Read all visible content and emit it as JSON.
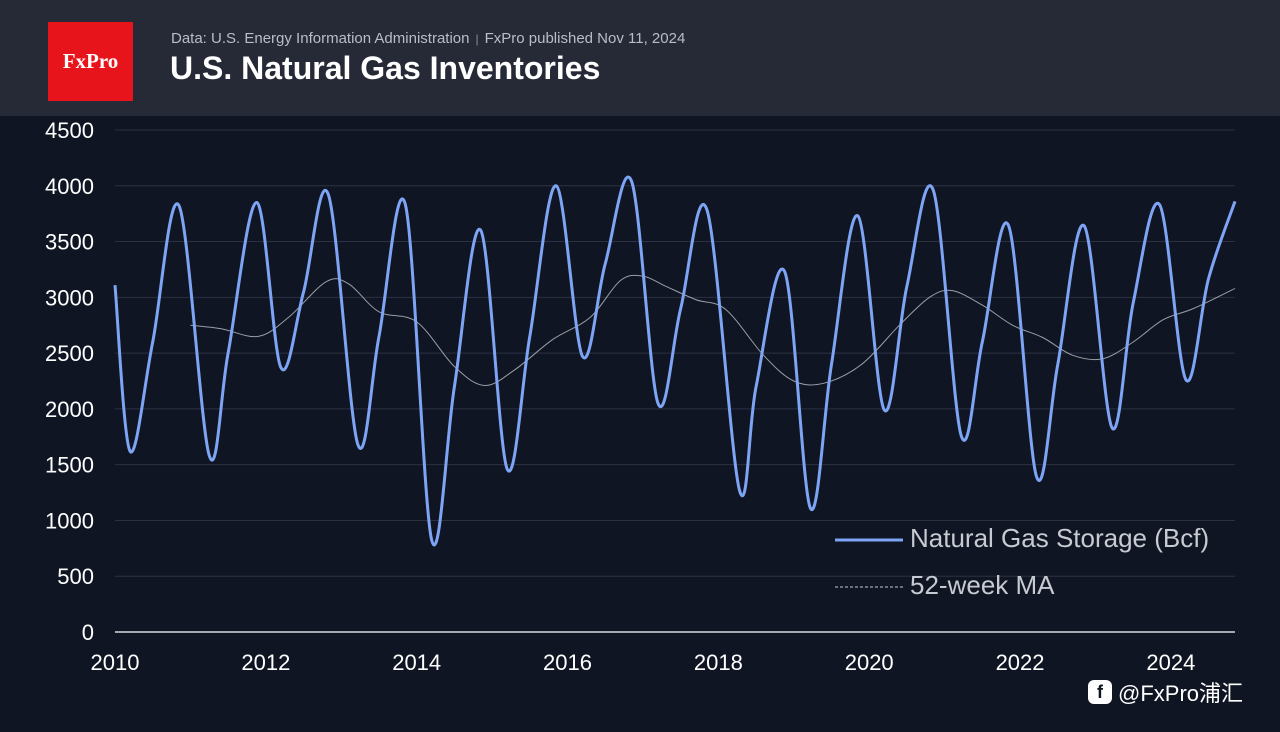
{
  "header": {
    "logo_text": "FxPro",
    "source": "Data: U.S. Energy Information Administration",
    "separator": "|",
    "published": "FxPro published Nov 11, 2024",
    "title": "U.S. Natural Gas Inventories"
  },
  "watermark": {
    "icon": "fxpro-social-icon",
    "text": "@FxPro浦汇"
  },
  "colors": {
    "background": "#0f1523",
    "header": "#262a36",
    "storage_line": "#7ea5f5",
    "ma_line": "#c9ccd2",
    "logo": "#e8141b"
  },
  "chart_data": {
    "type": "line",
    "title": "U.S. Natural Gas Inventories",
    "xlabel": "",
    "ylabel": "",
    "xlim": [
      2010,
      2024.85
    ],
    "ylim": [
      0,
      4500
    ],
    "x_ticks": [
      2010,
      2012,
      2014,
      2016,
      2018,
      2020,
      2022,
      2024
    ],
    "y_ticks": [
      0,
      500,
      1000,
      1500,
      2000,
      2500,
      3000,
      3500,
      4000,
      4500
    ],
    "grid": "horizontal",
    "legend_position": "bottom-right",
    "series": [
      {
        "name": "Natural Gas Storage (Bcf)",
        "style": "solid",
        "points": [
          [
            2010,
            3110
          ],
          [
            2010.2,
            1620
          ],
          [
            2010.5,
            2600
          ],
          [
            2010.85,
            3820
          ],
          [
            2011.25,
            1580
          ],
          [
            2011.5,
            2500
          ],
          [
            2011.88,
            3850
          ],
          [
            2012.2,
            2370
          ],
          [
            2012.5,
            3050
          ],
          [
            2012.83,
            3920
          ],
          [
            2013.22,
            1680
          ],
          [
            2013.5,
            2650
          ],
          [
            2013.85,
            3830
          ],
          [
            2014.2,
            820
          ],
          [
            2014.5,
            2200
          ],
          [
            2014.85,
            3600
          ],
          [
            2015.2,
            1460
          ],
          [
            2015.5,
            2650
          ],
          [
            2015.85,
            4000
          ],
          [
            2016.2,
            2470
          ],
          [
            2016.5,
            3300
          ],
          [
            2016.85,
            4040
          ],
          [
            2017.2,
            2050
          ],
          [
            2017.5,
            2900
          ],
          [
            2017.85,
            3780
          ],
          [
            2018.28,
            1270
          ],
          [
            2018.5,
            2200
          ],
          [
            2018.88,
            3230
          ],
          [
            2019.22,
            1110
          ],
          [
            2019.5,
            2400
          ],
          [
            2019.85,
            3730
          ],
          [
            2020.2,
            1990
          ],
          [
            2020.5,
            3100
          ],
          [
            2020.85,
            3960
          ],
          [
            2021.22,
            1760
          ],
          [
            2021.5,
            2600
          ],
          [
            2021.85,
            3640
          ],
          [
            2022.22,
            1390
          ],
          [
            2022.5,
            2400
          ],
          [
            2022.85,
            3640
          ],
          [
            2023.22,
            1830
          ],
          [
            2023.5,
            2950
          ],
          [
            2023.85,
            3830
          ],
          [
            2024.2,
            2260
          ],
          [
            2024.5,
            3170
          ],
          [
            2024.85,
            3860
          ]
        ]
      },
      {
        "name": "52-week MA",
        "style": "dashed",
        "points": [
          [
            2011,
            2750
          ],
          [
            2011.4,
            2720
          ],
          [
            2011.9,
            2650
          ],
          [
            2012.3,
            2820
          ],
          [
            2012.8,
            3140
          ],
          [
            2013.1,
            3120
          ],
          [
            2013.5,
            2870
          ],
          [
            2014,
            2780
          ],
          [
            2014.5,
            2380
          ],
          [
            2014.9,
            2210
          ],
          [
            2015.3,
            2350
          ],
          [
            2015.8,
            2620
          ],
          [
            2016.3,
            2820
          ],
          [
            2016.7,
            3150
          ],
          [
            2017,
            3190
          ],
          [
            2017.3,
            3100
          ],
          [
            2017.7,
            2980
          ],
          [
            2018.1,
            2890
          ],
          [
            2018.6,
            2480
          ],
          [
            2019,
            2250
          ],
          [
            2019.4,
            2230
          ],
          [
            2019.9,
            2400
          ],
          [
            2020.4,
            2750
          ],
          [
            2020.8,
            3000
          ],
          [
            2021.1,
            3060
          ],
          [
            2021.5,
            2930
          ],
          [
            2021.9,
            2750
          ],
          [
            2022.3,
            2640
          ],
          [
            2022.7,
            2480
          ],
          [
            2023.1,
            2450
          ],
          [
            2023.5,
            2600
          ],
          [
            2023.9,
            2800
          ],
          [
            2024.3,
            2900
          ],
          [
            2024.85,
            3080
          ]
        ]
      }
    ]
  }
}
